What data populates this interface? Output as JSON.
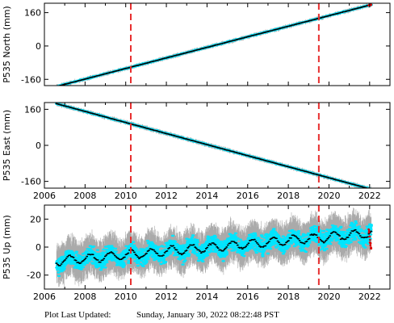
{
  "chart_data": [
    {
      "type": "scatter",
      "panel": "north",
      "title": "",
      "xlabel": "",
      "ylabel": "P535 North (mm)",
      "xlim": [
        2006.0,
        2023.0
      ],
      "ylim": [
        -190,
        205
      ],
      "x_ticks": [
        2006,
        2008,
        2010,
        2012,
        2014,
        2016,
        2018,
        2020,
        2022
      ],
      "x_tick_labels_shown": false,
      "y_ticks": [
        -160,
        0,
        160
      ],
      "y_tick_labels": [
        "-160",
        "0",
        "160"
      ],
      "grid": false,
      "data_start": 2006.6,
      "data_end": 2022.08,
      "series": [
        {
          "kind": "error-bars",
          "color": "#aaaaaa",
          "x": [
            2006.6,
            2022.08
          ],
          "y": [
            -194,
            198
          ]
        },
        {
          "kind": "daily-positions",
          "color": "#00e5ff",
          "x": [
            2006.6,
            2022.08
          ],
          "y": [
            -194,
            198
          ]
        },
        {
          "kind": "running-mean",
          "color": "#000000",
          "x": [
            2006.6,
            2022.08
          ],
          "y": [
            -194,
            198
          ]
        },
        {
          "kind": "recent-data",
          "color": "#dd0000",
          "x": [
            2021.95,
            2022.08
          ],
          "y": [
            195,
            198
          ]
        }
      ],
      "vlines": [
        2010.25,
        2019.5
      ],
      "vline_color": "#e83030",
      "noise": 2.5
    },
    {
      "type": "scatter",
      "panel": "east",
      "title": "",
      "xlabel": "",
      "ylabel": "P535 East (mm)",
      "xlim": [
        2006.0,
        2023.0
      ],
      "ylim": [
        -190,
        190
      ],
      "x_ticks": [
        2006,
        2008,
        2010,
        2012,
        2014,
        2016,
        2018,
        2020,
        2022
      ],
      "x_tick_labels": [
        "2006",
        "2008",
        "2010",
        "2012",
        "2014",
        "2016",
        "2018",
        "2020",
        "2022"
      ],
      "y_ticks": [
        -160,
        0,
        160
      ],
      "y_tick_labels": [
        "-160",
        "0",
        "160"
      ],
      "grid": false,
      "data_start": 2006.6,
      "data_end": 2022.08,
      "series": [
        {
          "kind": "error-bars",
          "color": "#aaaaaa",
          "x": [
            2006.6,
            2022.08
          ],
          "y": [
            185,
            -195
          ]
        },
        {
          "kind": "daily-positions",
          "color": "#00e5ff",
          "x": [
            2006.6,
            2022.08
          ],
          "y": [
            185,
            -195
          ]
        },
        {
          "kind": "running-mean",
          "color": "#000000",
          "x": [
            2006.6,
            2022.08
          ],
          "y": [
            185,
            -195
          ]
        },
        {
          "kind": "recent-data",
          "color": "#dd0000",
          "x": [
            2021.95,
            2022.08
          ],
          "y": [
            -192,
            -195
          ]
        }
      ],
      "vlines": [
        2010.25,
        2019.5
      ],
      "vline_color": "#e83030",
      "noise": 2.5
    },
    {
      "type": "scatter",
      "panel": "up",
      "title": "",
      "xlabel": "",
      "ylabel": "P535 Up (mm)",
      "xlim": [
        2006.0,
        2023.0
      ],
      "ylim": [
        -30,
        30
      ],
      "x_ticks": [
        2006,
        2008,
        2010,
        2012,
        2014,
        2016,
        2018,
        2020,
        2022
      ],
      "x_tick_labels": [
        "2006",
        "2008",
        "2010",
        "2012",
        "2014",
        "2016",
        "2018",
        "2020",
        "2022"
      ],
      "y_ticks": [
        -20,
        0,
        20
      ],
      "y_tick_labels": [
        "-20",
        "0",
        "20"
      ],
      "grid": false,
      "data_start": 2006.6,
      "data_end": 2022.08,
      "trend": {
        "x": [
          2006.6,
          2022.08
        ],
        "y": [
          -10,
          10
        ]
      },
      "seasonal_amplitude": 3,
      "series": [
        {
          "kind": "error-bars",
          "color": "#aaaaaa",
          "spread": 10
        },
        {
          "kind": "daily-positions",
          "color": "#00e5ff",
          "spread": 6
        },
        {
          "kind": "running-mean",
          "color": "#000000"
        },
        {
          "kind": "recent-data",
          "color": "#dd0000",
          "x": [
            2021.95,
            2022.08
          ],
          "y": [
            12,
            -2
          ]
        }
      ],
      "vlines": [
        2010.25,
        2019.5
      ],
      "vline_color": "#e83030"
    }
  ],
  "footer": {
    "label": "Plot Last Updated:",
    "timestamp": "Sunday, January 30, 2022 08:22:48 PST"
  }
}
